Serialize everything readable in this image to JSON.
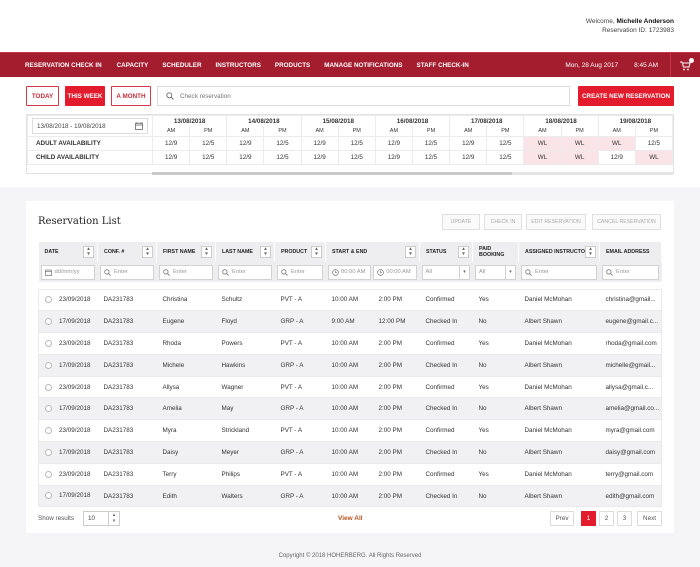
{
  "header": {
    "welcome_prefix": "Welcome,",
    "user_name": "Michelle Anderson",
    "reservation_id": "Reservation ID: 1723983"
  },
  "nav": {
    "items": [
      "RESERVATION CHECK IN",
      "CAPACITY",
      "SCHEDULER",
      "INSTRUCTORS",
      "PRODUCTS",
      "MANAGE NOTIFICATIONS",
      "STAFF CHECK-IN"
    ],
    "date": "Mon, 28 Aug 2017",
    "time": "8:45 AM",
    "cart_icon": "cart-icon"
  },
  "filters": {
    "today": "TODAY",
    "this_week": "THIS WEEK",
    "a_month": "A MONTH",
    "search_placeholder": "Check reservation",
    "create_new": "CREATE NEW RESERVATION"
  },
  "availability": {
    "date_range": "13/08/2018 - 19/08/2018",
    "dates": [
      "13/08/2018",
      "14/08/2018",
      "15/08/2018",
      "16/08/2018",
      "17/08/2018",
      "18/08/2018",
      "19/08/2018"
    ],
    "am": "AM",
    "pm": "PM",
    "rows": [
      {
        "label": "ADULT AVAILABILITY",
        "values": [
          "12/9",
          "12/5",
          "12/9",
          "12/5",
          "12/9",
          "12/5",
          "12/9",
          "12/5",
          "12/9",
          "12/5",
          "WL",
          "WL",
          "WL",
          "12/5"
        ]
      },
      {
        "label": "CHILD AVAILABILITY",
        "values": [
          "12/9",
          "12/5",
          "12/9",
          "12/5",
          "12/9",
          "12/5",
          "12/9",
          "12/5",
          "12/9",
          "12/5",
          "WL",
          "WL",
          "12/9",
          "WL"
        ]
      }
    ],
    "wl_color": "#fbe4e7"
  },
  "list": {
    "title": "Reservation List",
    "actions": [
      "UPDATE",
      "CHECK IN",
      "EDIT RESERVATION",
      "CANCEL RESERVATION"
    ],
    "columns": [
      "DATE",
      "CONF. #",
      "FIRST NAME",
      "LAST NAME",
      "PRODUCT",
      "START & END",
      "STATUS",
      "PAID BOOKING",
      "ASSIGNED INSTRUCTOR",
      "EMAIL ADDRESS"
    ],
    "filter_placeholders": {
      "date": "dd/mm/yy",
      "enter": "Enter",
      "time": "00:00 AM",
      "all": "All"
    },
    "rows": [
      {
        "date": "23/09/2018",
        "conf": "DA231783",
        "first": "Christina",
        "last": "Schultz",
        "product": "PVT - A",
        "start": "10:00 AM",
        "end": "2:00 PM",
        "status": "Confirmed",
        "paid": "Yes",
        "instructor": "Daniel McMohan",
        "email": "christina@gmail..."
      },
      {
        "date": "17/09/2018",
        "conf": "DA231783",
        "first": "Eugene",
        "last": "Floyd",
        "product": "GRP - A",
        "start": "9:00 AM",
        "end": "12:00 PM",
        "status": "Checked In",
        "paid": "No",
        "instructor": "Albert Shawn",
        "email": "eugene@gmail.c..."
      },
      {
        "date": "23/09/2018",
        "conf": "DA231783",
        "first": "Rhoda",
        "last": "Powers",
        "product": "PVT - A",
        "start": "10:00 AM",
        "end": "2:00 PM",
        "status": "Confirmed",
        "paid": "Yes",
        "instructor": "Daniel McMohan",
        "email": "rhoda@gmail.com"
      },
      {
        "date": "17/09/2018",
        "conf": "DA231783",
        "first": "Michele",
        "last": "Hawkins",
        "product": "GRP - A",
        "start": "10:00 AM",
        "end": "2:00 PM",
        "status": "Checked In",
        "paid": "No",
        "instructor": "Albert Shawn",
        "email": "michelle@gmail..."
      },
      {
        "date": "23/09/2018",
        "conf": "DA231783",
        "first": "Allysa",
        "last": "Wagner",
        "product": "PVT - A",
        "start": "10:00 AM",
        "end": "2:00 PM",
        "status": "Confirmed",
        "paid": "Yes",
        "instructor": "Daniel McMohan",
        "email": "allysa@gmail.c..."
      },
      {
        "date": "17/09/2018",
        "conf": "DA231783",
        "first": "Amelia",
        "last": "May",
        "product": "GRP - A",
        "start": "10:00 AM",
        "end": "2:00 PM",
        "status": "Checked In",
        "paid": "No",
        "instructor": "Albert Shawn",
        "email": "amelia@gmail.co..."
      },
      {
        "date": "23/09/2018",
        "conf": "DA231783",
        "first": "Myra",
        "last": "Strickland",
        "product": "PVT - A",
        "start": "10:00 AM",
        "end": "2:00 PM",
        "status": "Confirmed",
        "paid": "Yes",
        "instructor": "Daniel McMohan",
        "email": "myra@gmail.com"
      },
      {
        "date": "17/09/2018",
        "conf": "DA231783",
        "first": "Daisy",
        "last": "Meyer",
        "product": "GRP - A",
        "start": "10:00 AM",
        "end": "2:00 PM",
        "status": "Checked In",
        "paid": "No",
        "instructor": "Albert Shawn",
        "email": "daisy@gmail.com"
      },
      {
        "date": "23/09/2018",
        "conf": "DA231783",
        "first": "Terry",
        "last": "Philips",
        "product": "PVT - A",
        "start": "10:00 AM",
        "end": "2:00 PM",
        "status": "Confirmed",
        "paid": "Yes",
        "instructor": "Daniel McMohan",
        "email": "terry@gmail.com"
      },
      {
        "date": "17/09/2018",
        "conf": "DA231783",
        "first": "Edith",
        "last": "Walters",
        "product": "GRP - A",
        "start": "10:00 AM",
        "end": "2:00 PM",
        "status": "Checked In",
        "paid": "No",
        "instructor": "Albert Shawn",
        "email": "edith@gmail.com"
      }
    ],
    "show_results_label": "Show results",
    "show_results_value": "10",
    "view_all": "View All",
    "pagination": {
      "prev": "Prev",
      "pages": [
        "1",
        "2",
        "3"
      ],
      "next": "Next"
    }
  },
  "footer": {
    "copyright": "Copyright © 2018 HOHERBERG. All Rights Reserved"
  },
  "colors": {
    "brand": "#a41d2e",
    "accent": "#e21b2d"
  }
}
